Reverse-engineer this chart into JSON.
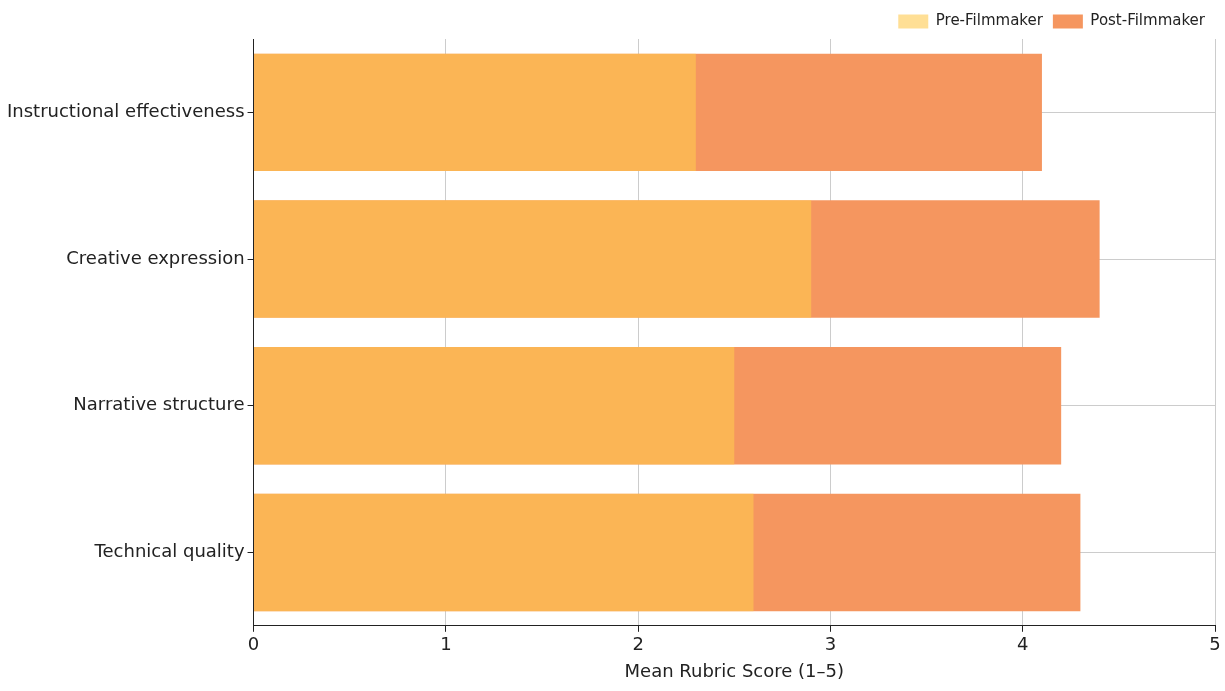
{
  "chart_data": {
    "type": "bar",
    "orientation": "horizontal",
    "xlabel": "Mean Rubric Score (1–5)",
    "categories": [
      "Instructional effectiveness",
      "Creative expression",
      "Narrative structure",
      "Technical quality"
    ],
    "series": [
      {
        "name": "Pre-Filmmaker",
        "color": "#ffc94f",
        "values": [
          2.3,
          2.9,
          2.5,
          2.6
        ]
      },
      {
        "name": "Post-Filmmaker",
        "color": "#f5965f",
        "values": [
          4.1,
          4.4,
          4.2,
          4.3
        ]
      }
    ],
    "xlim": [
      0,
      5
    ],
    "xticks": [
      0,
      1,
      2,
      3,
      4,
      5
    ],
    "grid": true,
    "legend": "top right"
  }
}
